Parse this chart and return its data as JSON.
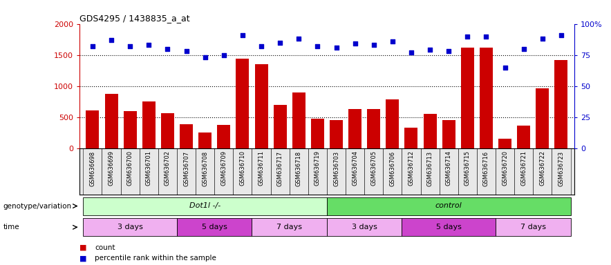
{
  "title": "GDS4295 / 1438835_a_at",
  "samples": [
    "GSM636698",
    "GSM636699",
    "GSM636700",
    "GSM636701",
    "GSM636702",
    "GSM636707",
    "GSM636708",
    "GSM636709",
    "GSM636710",
    "GSM636711",
    "GSM636717",
    "GSM636718",
    "GSM636719",
    "GSM636703",
    "GSM636704",
    "GSM636705",
    "GSM636706",
    "GSM636712",
    "GSM636713",
    "GSM636714",
    "GSM636715",
    "GSM636716",
    "GSM636720",
    "GSM636721",
    "GSM636722",
    "GSM636723"
  ],
  "counts": [
    610,
    880,
    600,
    750,
    570,
    390,
    250,
    380,
    1440,
    1350,
    700,
    900,
    480,
    460,
    630,
    630,
    790,
    330,
    560,
    450,
    1620,
    1620,
    160,
    370,
    970,
    1420
  ],
  "percentile": [
    82,
    87,
    82,
    83,
    80,
    78,
    73,
    75,
    91,
    82,
    85,
    88,
    82,
    81,
    84,
    83,
    86,
    77,
    79,
    78,
    90,
    90,
    65,
    80,
    88,
    91
  ],
  "bar_color": "#cc0000",
  "dot_color": "#0000cc",
  "left_ylim": [
    0,
    2000
  ],
  "right_ylim": [
    0,
    100
  ],
  "left_yticks": [
    0,
    500,
    1000,
    1500,
    2000
  ],
  "right_yticks": [
    0,
    25,
    50,
    75,
    100
  ],
  "right_yticklabels": [
    "0",
    "25",
    "50",
    "75",
    "100%"
  ],
  "grid_values": [
    500,
    1000,
    1500
  ],
  "genotype_groups": [
    {
      "label": "Dot1l -/-",
      "start": 0,
      "end": 13,
      "color": "#ccffcc"
    },
    {
      "label": "control",
      "start": 13,
      "end": 26,
      "color": "#66dd66"
    }
  ],
  "time_groups": [
    {
      "label": "3 days",
      "start": 0,
      "end": 5,
      "color": "#f0b0f0"
    },
    {
      "label": "5 days",
      "start": 5,
      "end": 9,
      "color": "#cc44cc"
    },
    {
      "label": "7 days",
      "start": 9,
      "end": 13,
      "color": "#f0b0f0"
    },
    {
      "label": "3 days",
      "start": 13,
      "end": 17,
      "color": "#f0b0f0"
    },
    {
      "label": "5 days",
      "start": 17,
      "end": 22,
      "color": "#cc44cc"
    },
    {
      "label": "7 days",
      "start": 22,
      "end": 26,
      "color": "#f0b0f0"
    }
  ],
  "bg_color": "#ffffff",
  "xtick_bg": "#e8e8e8"
}
